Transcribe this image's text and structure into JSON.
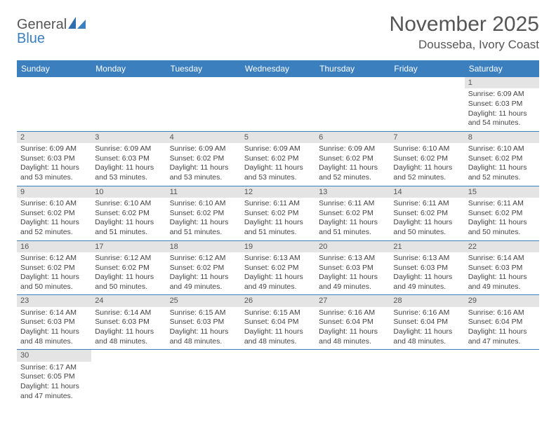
{
  "colors": {
    "header_bg": "#3b7fbf",
    "header_text": "#ffffff",
    "daynum_bg": "#e4e4e4",
    "border": "#3b7fbf",
    "title_color": "#555555",
    "body_text": "#444444",
    "logo_gray": "#555555",
    "logo_blue": "#3b7fbf"
  },
  "typography": {
    "title_fontsize": 30,
    "location_fontsize": 17,
    "dayheader_fontsize": 12,
    "daynum_fontsize": 11,
    "cell_fontsize": 10.5
  },
  "header": {
    "logo_text1": "General",
    "logo_text2": "Blue",
    "month_title": "November 2025",
    "location": "Dousseba, Ivory Coast"
  },
  "day_names": [
    "Sunday",
    "Monday",
    "Tuesday",
    "Wednesday",
    "Thursday",
    "Friday",
    "Saturday"
  ],
  "calendar": {
    "first_day_column": 6,
    "num_days": 30,
    "weeks": [
      [
        null,
        null,
        null,
        null,
        null,
        null,
        {
          "n": "1",
          "sunrise": "Sunrise: 6:09 AM",
          "sunset": "Sunset: 6:03 PM",
          "daylight": "Daylight: 11 hours and 54 minutes."
        }
      ],
      [
        {
          "n": "2",
          "sunrise": "Sunrise: 6:09 AM",
          "sunset": "Sunset: 6:03 PM",
          "daylight": "Daylight: 11 hours and 53 minutes."
        },
        {
          "n": "3",
          "sunrise": "Sunrise: 6:09 AM",
          "sunset": "Sunset: 6:03 PM",
          "daylight": "Daylight: 11 hours and 53 minutes."
        },
        {
          "n": "4",
          "sunrise": "Sunrise: 6:09 AM",
          "sunset": "Sunset: 6:02 PM",
          "daylight": "Daylight: 11 hours and 53 minutes."
        },
        {
          "n": "5",
          "sunrise": "Sunrise: 6:09 AM",
          "sunset": "Sunset: 6:02 PM",
          "daylight": "Daylight: 11 hours and 53 minutes."
        },
        {
          "n": "6",
          "sunrise": "Sunrise: 6:09 AM",
          "sunset": "Sunset: 6:02 PM",
          "daylight": "Daylight: 11 hours and 52 minutes."
        },
        {
          "n": "7",
          "sunrise": "Sunrise: 6:10 AM",
          "sunset": "Sunset: 6:02 PM",
          "daylight": "Daylight: 11 hours and 52 minutes."
        },
        {
          "n": "8",
          "sunrise": "Sunrise: 6:10 AM",
          "sunset": "Sunset: 6:02 PM",
          "daylight": "Daylight: 11 hours and 52 minutes."
        }
      ],
      [
        {
          "n": "9",
          "sunrise": "Sunrise: 6:10 AM",
          "sunset": "Sunset: 6:02 PM",
          "daylight": "Daylight: 11 hours and 52 minutes."
        },
        {
          "n": "10",
          "sunrise": "Sunrise: 6:10 AM",
          "sunset": "Sunset: 6:02 PM",
          "daylight": "Daylight: 11 hours and 51 minutes."
        },
        {
          "n": "11",
          "sunrise": "Sunrise: 6:10 AM",
          "sunset": "Sunset: 6:02 PM",
          "daylight": "Daylight: 11 hours and 51 minutes."
        },
        {
          "n": "12",
          "sunrise": "Sunrise: 6:11 AM",
          "sunset": "Sunset: 6:02 PM",
          "daylight": "Daylight: 11 hours and 51 minutes."
        },
        {
          "n": "13",
          "sunrise": "Sunrise: 6:11 AM",
          "sunset": "Sunset: 6:02 PM",
          "daylight": "Daylight: 11 hours and 51 minutes."
        },
        {
          "n": "14",
          "sunrise": "Sunrise: 6:11 AM",
          "sunset": "Sunset: 6:02 PM",
          "daylight": "Daylight: 11 hours and 50 minutes."
        },
        {
          "n": "15",
          "sunrise": "Sunrise: 6:11 AM",
          "sunset": "Sunset: 6:02 PM",
          "daylight": "Daylight: 11 hours and 50 minutes."
        }
      ],
      [
        {
          "n": "16",
          "sunrise": "Sunrise: 6:12 AM",
          "sunset": "Sunset: 6:02 PM",
          "daylight": "Daylight: 11 hours and 50 minutes."
        },
        {
          "n": "17",
          "sunrise": "Sunrise: 6:12 AM",
          "sunset": "Sunset: 6:02 PM",
          "daylight": "Daylight: 11 hours and 50 minutes."
        },
        {
          "n": "18",
          "sunrise": "Sunrise: 6:12 AM",
          "sunset": "Sunset: 6:02 PM",
          "daylight": "Daylight: 11 hours and 49 minutes."
        },
        {
          "n": "19",
          "sunrise": "Sunrise: 6:13 AM",
          "sunset": "Sunset: 6:02 PM",
          "daylight": "Daylight: 11 hours and 49 minutes."
        },
        {
          "n": "20",
          "sunrise": "Sunrise: 6:13 AM",
          "sunset": "Sunset: 6:03 PM",
          "daylight": "Daylight: 11 hours and 49 minutes."
        },
        {
          "n": "21",
          "sunrise": "Sunrise: 6:13 AM",
          "sunset": "Sunset: 6:03 PM",
          "daylight": "Daylight: 11 hours and 49 minutes."
        },
        {
          "n": "22",
          "sunrise": "Sunrise: 6:14 AM",
          "sunset": "Sunset: 6:03 PM",
          "daylight": "Daylight: 11 hours and 49 minutes."
        }
      ],
      [
        {
          "n": "23",
          "sunrise": "Sunrise: 6:14 AM",
          "sunset": "Sunset: 6:03 PM",
          "daylight": "Daylight: 11 hours and 48 minutes."
        },
        {
          "n": "24",
          "sunrise": "Sunrise: 6:14 AM",
          "sunset": "Sunset: 6:03 PM",
          "daylight": "Daylight: 11 hours and 48 minutes."
        },
        {
          "n": "25",
          "sunrise": "Sunrise: 6:15 AM",
          "sunset": "Sunset: 6:03 PM",
          "daylight": "Daylight: 11 hours and 48 minutes."
        },
        {
          "n": "26",
          "sunrise": "Sunrise: 6:15 AM",
          "sunset": "Sunset: 6:04 PM",
          "daylight": "Daylight: 11 hours and 48 minutes."
        },
        {
          "n": "27",
          "sunrise": "Sunrise: 6:16 AM",
          "sunset": "Sunset: 6:04 PM",
          "daylight": "Daylight: 11 hours and 48 minutes."
        },
        {
          "n": "28",
          "sunrise": "Sunrise: 6:16 AM",
          "sunset": "Sunset: 6:04 PM",
          "daylight": "Daylight: 11 hours and 48 minutes."
        },
        {
          "n": "29",
          "sunrise": "Sunrise: 6:16 AM",
          "sunset": "Sunset: 6:04 PM",
          "daylight": "Daylight: 11 hours and 47 minutes."
        }
      ],
      [
        {
          "n": "30",
          "sunrise": "Sunrise: 6:17 AM",
          "sunset": "Sunset: 6:05 PM",
          "daylight": "Daylight: 11 hours and 47 minutes."
        },
        null,
        null,
        null,
        null,
        null,
        null
      ]
    ]
  }
}
